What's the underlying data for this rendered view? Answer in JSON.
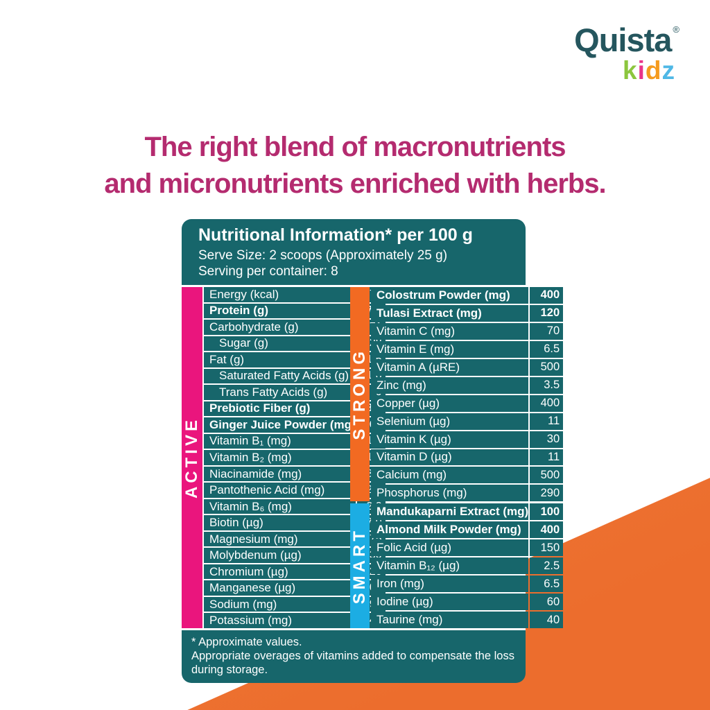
{
  "logo": {
    "brand": "Quista",
    "registered_mark": "®",
    "sub_brand": "kidz",
    "sub_brand_letters": [
      {
        "char": "k",
        "color": "#8cc63e"
      },
      {
        "char": "i",
        "color": "#e9338a"
      },
      {
        "char": "d",
        "color": "#f59b1e"
      },
      {
        "char": "z",
        "color": "#4fb8e6"
      }
    ],
    "brand_color": "#25565e"
  },
  "headline": {
    "line1": "The right blend of macronutrients",
    "line2": "and micronutrients enriched with herbs.",
    "color": "#b42b6f"
  },
  "table": {
    "title": "Nutritional Information* per 100 g",
    "serve_size": "Serve Size: 2 scoops (Approximately 25 g)",
    "servings_per_container": "Serving per container: 8",
    "teal_color": "#17666b",
    "left_section": {
      "label": "ACTIVE",
      "color": "#ea157d",
      "rows": [
        {
          "label": "Energy (kcal)",
          "value": "374"
        },
        {
          "label": "Protein (g)",
          "value": "17.5",
          "bold": true
        },
        {
          "label": "Carbohydrate (g)",
          "value": "71"
        },
        {
          "label": "Sugar (g)",
          "value": "28",
          "indent": true
        },
        {
          "label": "Fat (g)",
          "value": "1.5"
        },
        {
          "label": "Saturated Fatty Acids (g)",
          "value": "1.0",
          "indent": true
        },
        {
          "label": "Trans Fatty Acids (g)",
          "value": "0",
          "indent": true
        },
        {
          "label": "Prebiotic Fiber (g)",
          "value": "3.0",
          "bold": true
        },
        {
          "label": "Ginger Juice Powder (mg)",
          "value": "160",
          "bold": true
        },
        {
          "label": "Vitamin B₁ (mg)",
          "value": "1.6"
        },
        {
          "label": "Vitamin B₂ (mg)",
          "value": "1.6"
        },
        {
          "label": "Niacinamide (mg)",
          "value": "8.5"
        },
        {
          "label": "Pantothenic Acid (mg)",
          "value": "2.2"
        },
        {
          "label": "Vitamin B₆ (mg)",
          "value": "2.0"
        },
        {
          "label": "Biotin (µg)",
          "value": "7.0"
        },
        {
          "label": "Magnesium (mg)",
          "value": "75"
        },
        {
          "label": "Molybdenum (µg)",
          "value": "30"
        },
        {
          "label": "Chromium (µg)",
          "value": "20"
        },
        {
          "label": "Manganese (µg)",
          "value": "800"
        },
        {
          "label": "Sodium (mg)",
          "value": "190"
        },
        {
          "label": "Potassium (mg)",
          "value": "540"
        }
      ]
    },
    "right_sections": [
      {
        "label": "STRONG",
        "color": "#f26a22",
        "rows": [
          {
            "label": "Colostrum Powder (mg)",
            "value": "400",
            "bold": true
          },
          {
            "label": "Tulasi Extract (mg)",
            "value": "120",
            "bold": true
          },
          {
            "label": "Vitamin C (mg)",
            "value": "70"
          },
          {
            "label": "Vitamin E (mg)",
            "value": "6.5"
          },
          {
            "label": "Vitamin A (µRE)",
            "value": "500"
          },
          {
            "label": "Zinc (mg)",
            "value": "3.5"
          },
          {
            "label": "Copper (µg)",
            "value": "400"
          },
          {
            "label": "Selenium (µg)",
            "value": "11"
          },
          {
            "label": "Vitamin K (µg)",
            "value": "30"
          },
          {
            "label": "Vitamin D (µg)",
            "value": "11"
          },
          {
            "label": "Calcium (mg)",
            "value": "500"
          },
          {
            "label": "Phosphorus (mg)",
            "value": "290"
          }
        ]
      },
      {
        "label": "SMART",
        "color": "#1cade3",
        "rows": [
          {
            "label": "Mandukaparni Extract (mg)",
            "value": "100",
            "bold": true
          },
          {
            "label": "Almond Milk Powder (mg)",
            "value": "400",
            "bold": true
          },
          {
            "label": "Folic Acid (µg)",
            "value": "150"
          },
          {
            "label": "Vitamin B₁₂ (µg)",
            "value": "2.5"
          },
          {
            "label": "Iron (mg)",
            "value": "6.5"
          },
          {
            "label": "Iodine (µg)",
            "value": "60"
          },
          {
            "label": "Taurine (mg)",
            "value": "40"
          }
        ]
      }
    ],
    "footnote": {
      "line1": "* Approximate values.",
      "line2": "Appropriate overages of vitamins added to compensate the loss",
      "line3": "during storage."
    }
  },
  "background": {
    "wedge_color": "#ee7434"
  }
}
